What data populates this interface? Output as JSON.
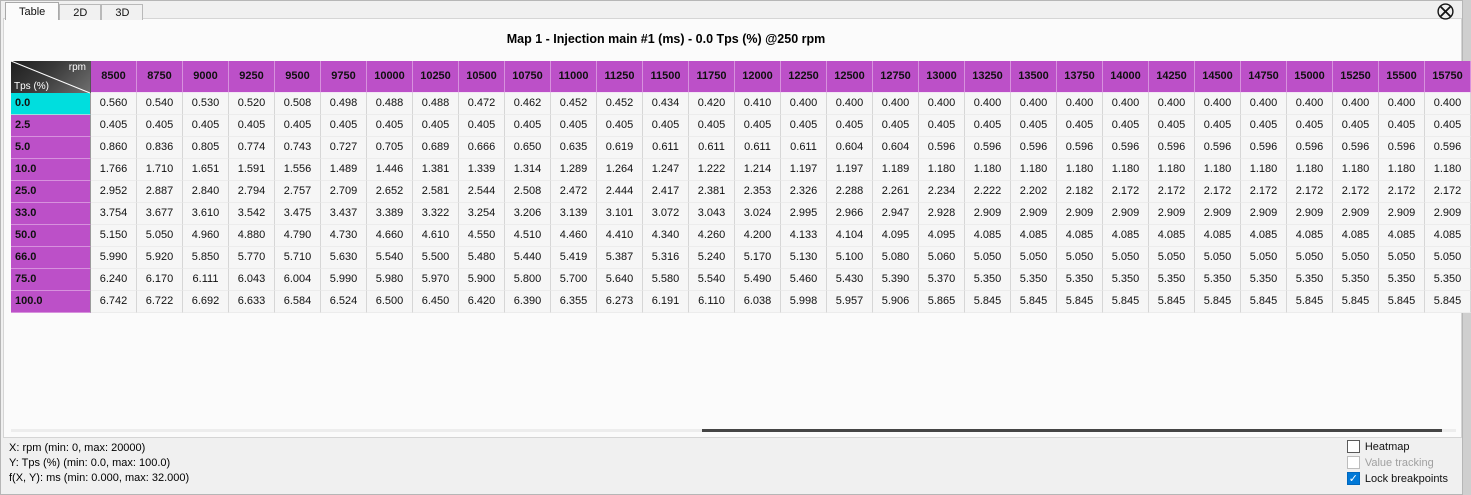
{
  "tabs": [
    {
      "label": "Table",
      "active": true
    },
    {
      "label": "2D",
      "active": false
    },
    {
      "label": "3D",
      "active": false
    }
  ],
  "title": "Map 1 - Injection main #1 (ms) - 0.0 Tps (%) @250 rpm",
  "table": {
    "corner": {
      "x_axis": "rpm",
      "y_axis": "Tps (%)"
    },
    "rpm_columns": [
      "8500",
      "8750",
      "9000",
      "9250",
      "9500",
      "9750",
      "10000",
      "10250",
      "10500",
      "10750",
      "11000",
      "11250",
      "11500",
      "11750",
      "12000",
      "12250",
      "12500",
      "12750",
      "13000",
      "13250",
      "13500",
      "13750",
      "14000",
      "14250",
      "14500",
      "14750",
      "15000",
      "15250",
      "15500",
      "15750"
    ],
    "rows": [
      {
        "tps": "0.0",
        "selected": true,
        "values": [
          "0.560",
          "0.540",
          "0.530",
          "0.520",
          "0.508",
          "0.498",
          "0.488",
          "0.488",
          "0.472",
          "0.462",
          "0.452",
          "0.452",
          "0.434",
          "0.420",
          "0.410",
          "0.400",
          "0.400",
          "0.400",
          "0.400",
          "0.400",
          "0.400",
          "0.400",
          "0.400",
          "0.400",
          "0.400",
          "0.400",
          "0.400",
          "0.400",
          "0.400",
          "0.400"
        ]
      },
      {
        "tps": "2.5",
        "selected": false,
        "values": [
          "0.405",
          "0.405",
          "0.405",
          "0.405",
          "0.405",
          "0.405",
          "0.405",
          "0.405",
          "0.405",
          "0.405",
          "0.405",
          "0.405",
          "0.405",
          "0.405",
          "0.405",
          "0.405",
          "0.405",
          "0.405",
          "0.405",
          "0.405",
          "0.405",
          "0.405",
          "0.405",
          "0.405",
          "0.405",
          "0.405",
          "0.405",
          "0.405",
          "0.405",
          "0.405"
        ]
      },
      {
        "tps": "5.0",
        "selected": false,
        "values": [
          "0.860",
          "0.836",
          "0.805",
          "0.774",
          "0.743",
          "0.727",
          "0.705",
          "0.689",
          "0.666",
          "0.650",
          "0.635",
          "0.619",
          "0.611",
          "0.611",
          "0.611",
          "0.611",
          "0.604",
          "0.604",
          "0.596",
          "0.596",
          "0.596",
          "0.596",
          "0.596",
          "0.596",
          "0.596",
          "0.596",
          "0.596",
          "0.596",
          "0.596",
          "0.596"
        ]
      },
      {
        "tps": "10.0",
        "selected": false,
        "values": [
          "1.766",
          "1.710",
          "1.651",
          "1.591",
          "1.556",
          "1.489",
          "1.446",
          "1.381",
          "1.339",
          "1.314",
          "1.289",
          "1.264",
          "1.247",
          "1.222",
          "1.214",
          "1.197",
          "1.197",
          "1.189",
          "1.180",
          "1.180",
          "1.180",
          "1.180",
          "1.180",
          "1.180",
          "1.180",
          "1.180",
          "1.180",
          "1.180",
          "1.180",
          "1.180"
        ]
      },
      {
        "tps": "25.0",
        "selected": false,
        "values": [
          "2.952",
          "2.887",
          "2.840",
          "2.794",
          "2.757",
          "2.709",
          "2.652",
          "2.581",
          "2.544",
          "2.508",
          "2.472",
          "2.444",
          "2.417",
          "2.381",
          "2.353",
          "2.326",
          "2.288",
          "2.261",
          "2.234",
          "2.222",
          "2.202",
          "2.182",
          "2.172",
          "2.172",
          "2.172",
          "2.172",
          "2.172",
          "2.172",
          "2.172",
          "2.172"
        ]
      },
      {
        "tps": "33.0",
        "selected": false,
        "values": [
          "3.754",
          "3.677",
          "3.610",
          "3.542",
          "3.475",
          "3.437",
          "3.389",
          "3.322",
          "3.254",
          "3.206",
          "3.139",
          "3.101",
          "3.072",
          "3.043",
          "3.024",
          "2.995",
          "2.966",
          "2.947",
          "2.928",
          "2.909",
          "2.909",
          "2.909",
          "2.909",
          "2.909",
          "2.909",
          "2.909",
          "2.909",
          "2.909",
          "2.909",
          "2.909"
        ]
      },
      {
        "tps": "50.0",
        "selected": false,
        "values": [
          "5.150",
          "5.050",
          "4.960",
          "4.880",
          "4.790",
          "4.730",
          "4.660",
          "4.610",
          "4.550",
          "4.510",
          "4.460",
          "4.410",
          "4.340",
          "4.260",
          "4.200",
          "4.133",
          "4.104",
          "4.095",
          "4.095",
          "4.085",
          "4.085",
          "4.085",
          "4.085",
          "4.085",
          "4.085",
          "4.085",
          "4.085",
          "4.085",
          "4.085",
          "4.085"
        ]
      },
      {
        "tps": "66.0",
        "selected": false,
        "values": [
          "5.990",
          "5.920",
          "5.850",
          "5.770",
          "5.710",
          "5.630",
          "5.540",
          "5.500",
          "5.480",
          "5.440",
          "5.419",
          "5.387",
          "5.316",
          "5.240",
          "5.170",
          "5.130",
          "5.100",
          "5.080",
          "5.060",
          "5.050",
          "5.050",
          "5.050",
          "5.050",
          "5.050",
          "5.050",
          "5.050",
          "5.050",
          "5.050",
          "5.050",
          "5.050"
        ]
      },
      {
        "tps": "75.0",
        "selected": false,
        "values": [
          "6.240",
          "6.170",
          "6.111",
          "6.043",
          "6.004",
          "5.990",
          "5.980",
          "5.970",
          "5.900",
          "5.800",
          "5.700",
          "5.640",
          "5.580",
          "5.540",
          "5.490",
          "5.460",
          "5.430",
          "5.390",
          "5.370",
          "5.350",
          "5.350",
          "5.350",
          "5.350",
          "5.350",
          "5.350",
          "5.350",
          "5.350",
          "5.350",
          "5.350",
          "5.350"
        ]
      },
      {
        "tps": "100.0",
        "selected": false,
        "values": [
          "6.742",
          "6.722",
          "6.692",
          "6.633",
          "6.584",
          "6.524",
          "6.500",
          "6.450",
          "6.420",
          "6.390",
          "6.355",
          "6.273",
          "6.191",
          "6.110",
          "6.038",
          "5.998",
          "5.957",
          "5.906",
          "5.865",
          "5.845",
          "5.845",
          "5.845",
          "5.845",
          "5.845",
          "5.845",
          "5.845",
          "5.845",
          "5.845",
          "5.845",
          "5.845"
        ]
      }
    ]
  },
  "scrollbar": {
    "thumb_left_pct": 47.8,
    "thumb_width_pct": 51.2
  },
  "status": {
    "x_info": "X: rpm (min: 0, max: 20000)",
    "y_info": "Y: Tps (%) (min: 0.0, max: 100.0)",
    "f_info": "f(X, Y): ms (min: 0.000, max: 32.000)"
  },
  "options": [
    {
      "label": "Heatmap",
      "checked": false,
      "disabled": false
    },
    {
      "label": "Value tracking",
      "checked": false,
      "disabled": true
    },
    {
      "label": "Lock breakpoints",
      "checked": true,
      "disabled": false
    }
  ],
  "colors": {
    "header_purple": "#bc50c8",
    "selected_cyan": "#00dede",
    "checkbox_blue": "#0078d7"
  }
}
